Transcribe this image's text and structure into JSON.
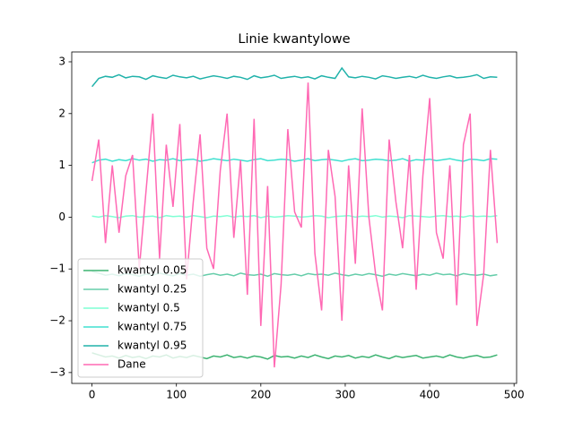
{
  "chart_data": {
    "type": "line",
    "title": "Linie kwantylowe",
    "x": [
      0,
      8,
      16,
      24,
      32,
      40,
      48,
      56,
      64,
      72,
      80,
      88,
      96,
      104,
      112,
      120,
      128,
      136,
      144,
      152,
      160,
      168,
      176,
      184,
      192,
      200,
      208,
      216,
      224,
      232,
      240,
      248,
      256,
      264,
      272,
      280,
      288,
      296,
      304,
      312,
      320,
      328,
      336,
      344,
      352,
      360,
      368,
      376,
      384,
      392,
      400,
      408,
      416,
      424,
      432,
      440,
      448,
      456,
      464,
      472,
      480
    ],
    "series": [
      {
        "name": "kwantyl 0.05",
        "color": "#3cb371",
        "values": [
          -2.62,
          -2.66,
          -2.7,
          -2.68,
          -2.72,
          -2.67,
          -2.71,
          -2.69,
          -2.73,
          -2.68,
          -2.7,
          -2.66,
          -2.72,
          -2.69,
          -2.71,
          -2.67,
          -2.7,
          -2.73,
          -2.68,
          -2.7,
          -2.66,
          -2.71,
          -2.69,
          -2.72,
          -2.68,
          -2.7,
          -2.74,
          -2.67,
          -2.7,
          -2.69,
          -2.72,
          -2.68,
          -2.71,
          -2.66,
          -2.7,
          -2.73,
          -2.68,
          -2.7,
          -2.67,
          -2.72,
          -2.69,
          -2.71,
          -2.66,
          -2.7,
          -2.73,
          -2.68,
          -2.71,
          -2.69,
          -2.67,
          -2.72,
          -2.7,
          -2.68,
          -2.71,
          -2.66,
          -2.7,
          -2.72,
          -2.69,
          -2.67,
          -2.71,
          -2.7,
          -2.66
        ]
      },
      {
        "name": "kwantyl 0.25",
        "color": "#66cdaa",
        "values": [
          -1.05,
          -1.08,
          -1.12,
          -1.1,
          -1.13,
          -1.09,
          -1.11,
          -1.14,
          -1.1,
          -1.12,
          -1.08,
          -1.11,
          -1.13,
          -1.09,
          -1.12,
          -1.1,
          -1.14,
          -1.11,
          -1.09,
          -1.12,
          -1.1,
          -1.13,
          -1.08,
          -1.11,
          -1.12,
          -1.1,
          -1.14,
          -1.09,
          -1.11,
          -1.12,
          -1.1,
          -1.13,
          -1.09,
          -1.11,
          -1.1,
          -1.12,
          -1.08,
          -1.11,
          -1.13,
          -1.1,
          -1.12,
          -1.09,
          -1.11,
          -1.14,
          -1.1,
          -1.12,
          -1.09,
          -1.11,
          -1.13,
          -1.1,
          -1.12,
          -1.08,
          -1.11,
          -1.1,
          -1.13,
          -1.09,
          -1.11,
          -1.12,
          -1.1,
          -1.13,
          -1.11
        ]
      },
      {
        "name": "kwantyl 0.5",
        "color": "#7fffd4",
        "values": [
          0.02,
          0.0,
          0.03,
          0.01,
          -0.01,
          0.02,
          0.03,
          0.0,
          0.01,
          0.02,
          -0.01,
          0.03,
          0.01,
          0.02,
          0.0,
          0.03,
          0.01,
          -0.01,
          0.02,
          0.01,
          0.03,
          0.0,
          0.02,
          0.01,
          0.03,
          -0.01,
          0.02,
          0.0,
          0.01,
          0.03,
          0.02,
          0.0,
          0.01,
          0.03,
          0.02,
          -0.01,
          0.01,
          0.02,
          0.03,
          0.0,
          0.02,
          0.01,
          0.03,
          0.0,
          0.02,
          0.01,
          -0.01,
          0.03,
          0.02,
          0.01,
          0.0,
          0.02,
          0.03,
          0.01,
          0.02,
          0.0,
          0.03,
          0.01,
          0.02,
          0.01,
          0.03
        ]
      },
      {
        "name": "kwantyl 0.75",
        "color": "#40e0d0",
        "values": [
          1.05,
          1.1,
          1.12,
          1.08,
          1.11,
          1.09,
          1.13,
          1.1,
          1.12,
          1.08,
          1.11,
          1.1,
          1.13,
          1.09,
          1.11,
          1.12,
          1.08,
          1.1,
          1.13,
          1.11,
          1.09,
          1.12,
          1.1,
          1.08,
          1.11,
          1.13,
          1.09,
          1.1,
          1.12,
          1.11,
          1.08,
          1.1,
          1.13,
          1.09,
          1.11,
          1.12,
          1.1,
          1.08,
          1.11,
          1.13,
          1.09,
          1.1,
          1.12,
          1.11,
          1.09,
          1.1,
          1.13,
          1.08,
          1.11,
          1.1,
          1.12,
          1.09,
          1.11,
          1.13,
          1.1,
          1.08,
          1.12,
          1.11,
          1.09,
          1.13,
          1.12
        ]
      },
      {
        "name": "kwantyl 0.95",
        "color": "#20b2aa",
        "values": [
          2.52,
          2.68,
          2.72,
          2.7,
          2.75,
          2.69,
          2.72,
          2.71,
          2.66,
          2.73,
          2.7,
          2.68,
          2.74,
          2.71,
          2.69,
          2.72,
          2.67,
          2.7,
          2.73,
          2.71,
          2.68,
          2.72,
          2.7,
          2.66,
          2.73,
          2.69,
          2.71,
          2.74,
          2.68,
          2.7,
          2.72,
          2.69,
          2.71,
          2.67,
          2.73,
          2.7,
          2.68,
          2.88,
          2.71,
          2.69,
          2.72,
          2.7,
          2.67,
          2.73,
          2.71,
          2.68,
          2.7,
          2.72,
          2.69,
          2.74,
          2.7,
          2.68,
          2.71,
          2.73,
          2.69,
          2.7,
          2.72,
          2.75,
          2.68,
          2.71,
          2.7
        ]
      },
      {
        "name": "Dane",
        "color": "#ff69b4",
        "values": [
          0.7,
          1.5,
          -0.5,
          1.0,
          -0.3,
          0.8,
          1.2,
          -1.0,
          0.5,
          2.0,
          -0.8,
          1.4,
          0.2,
          1.8,
          -1.2,
          0.3,
          1.6,
          -0.6,
          -1.0,
          0.9,
          2.0,
          -0.4,
          1.1,
          -1.5,
          1.9,
          -2.1,
          0.6,
          -2.9,
          -1.3,
          1.7,
          0.1,
          -0.2,
          2.6,
          -0.7,
          -1.8,
          1.3,
          0.4,
          -2.0,
          1.0,
          -0.9,
          2.1,
          0.0,
          -1.1,
          -1.8,
          1.5,
          0.3,
          -0.6,
          1.2,
          -1.4,
          0.8,
          2.3,
          -0.3,
          -0.8,
          1.0,
          -1.7,
          1.4,
          2.0,
          -2.1,
          -1.1,
          1.3,
          -0.5
        ]
      }
    ],
    "xlim": [
      -24,
      503
    ],
    "ylim": [
      -3.21,
      3.19
    ],
    "xticks": [
      0,
      100,
      200,
      300,
      400,
      500
    ],
    "yticks": [
      {
        "value": -3,
        "label": "−3"
      },
      {
        "value": -2,
        "label": "−2"
      },
      {
        "value": -1,
        "label": "−1"
      },
      0,
      1,
      2,
      3
    ],
    "legend": "lower left"
  }
}
